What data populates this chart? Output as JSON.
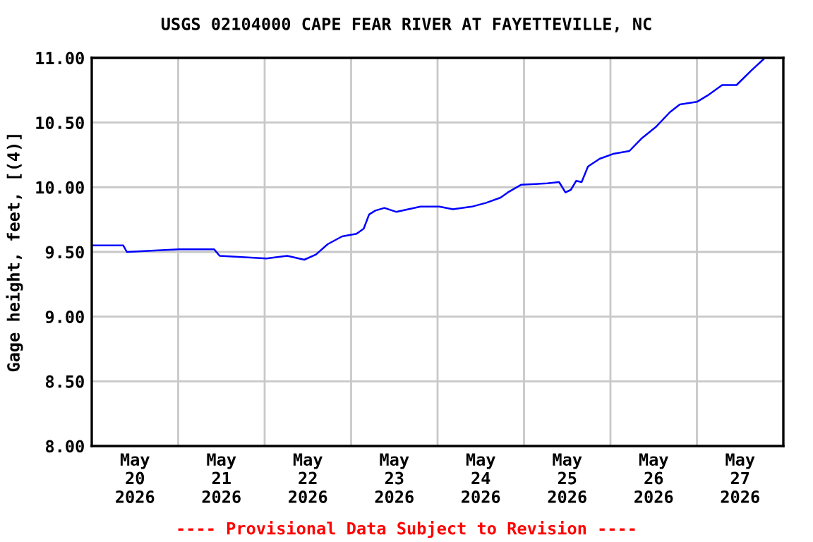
{
  "chart_data": {
    "type": "line",
    "title": "USGS 02104000 CAPE FEAR RIVER AT FAYETTEVILLE, NC",
    "ylabel": "Gage height, feet, [(4)]",
    "annotations": [
      "---- Provisional Data Subject to Revision ----"
    ],
    "x": [
      "2026-05-20T00:15",
      "2026-05-20T08:45",
      "2026-05-20T09:45",
      "2026-05-21T00:15",
      "2026-05-21T10:00",
      "2026-05-21T11:30",
      "2026-05-22T00:30",
      "2026-05-22T06:15",
      "2026-05-22T11:00",
      "2026-05-22T14:15",
      "2026-05-22T17:30",
      "2026-05-22T21:30",
      "2026-05-23T01:30",
      "2026-05-23T03:30",
      "2026-05-23T05:00",
      "2026-05-23T06:45",
      "2026-05-23T09:15",
      "2026-05-23T12:30",
      "2026-05-23T19:15",
      "2026-05-24T00:30",
      "2026-05-24T04:15",
      "2026-05-24T09:30",
      "2026-05-24T13:30",
      "2026-05-24T17:30",
      "2026-05-24T19:30",
      "2026-05-24T23:15",
      "2026-05-25T06:30",
      "2026-05-25T09:45",
      "2026-05-25T11:30",
      "2026-05-25T13:00",
      "2026-05-25T14:30",
      "2026-05-25T16:00",
      "2026-05-25T17:45",
      "2026-05-25T21:00",
      "2026-05-26T01:00",
      "2026-05-26T05:15",
      "2026-05-26T08:45",
      "2026-05-26T12:45",
      "2026-05-26T16:30",
      "2026-05-26T19:15",
      "2026-05-27T00:00",
      "2026-05-27T03:00",
      "2026-05-27T07:00",
      "2026-05-27T11:00",
      "2026-05-27T15:00",
      "2026-05-27T18:30"
    ],
    "series": [
      {
        "color": "#0000ff",
        "values": [
          9.55,
          9.55,
          9.5,
          9.52,
          9.52,
          9.47,
          9.45,
          9.47,
          9.44,
          9.48,
          9.56,
          9.62,
          9.64,
          9.68,
          9.79,
          9.82,
          9.84,
          9.81,
          9.85,
          9.85,
          9.83,
          9.85,
          9.88,
          9.92,
          9.96,
          10.02,
          10.03,
          10.04,
          9.96,
          9.98,
          10.05,
          10.04,
          10.16,
          10.22,
          10.26,
          10.28,
          10.38,
          10.47,
          10.58,
          10.64,
          10.66,
          10.71,
          10.79,
          10.79,
          10.9,
          10.99
        ]
      }
    ],
    "xlim": [
      "2026-05-20T00:00",
      "2026-05-28T00:00"
    ],
    "xticks": [
      {
        "value": "2026-05-20T00:00",
        "label": null
      },
      {
        "value": "2026-05-20T12:00",
        "label": "May\n20\n2026"
      },
      {
        "value": "2026-05-21T00:00",
        "label": null
      },
      {
        "value": "2026-05-21T12:00",
        "label": "May\n21\n2026"
      },
      {
        "value": "2026-05-22T00:00",
        "label": null
      },
      {
        "value": "2026-05-22T12:00",
        "label": "May\n22\n2026"
      },
      {
        "value": "2026-05-23T00:00",
        "label": null
      },
      {
        "value": "2026-05-23T12:00",
        "label": "May\n23\n2026"
      },
      {
        "value": "2026-05-24T00:00",
        "label": null
      },
      {
        "value": "2026-05-24T12:00",
        "label": "May\n24\n2026"
      },
      {
        "value": "2026-05-25T00:00",
        "label": null
      },
      {
        "value": "2026-05-25T12:00",
        "label": "May\n25\n2026"
      },
      {
        "value": "2026-05-26T00:00",
        "label": null
      },
      {
        "value": "2026-05-26T12:00",
        "label": "May\n26\n2026"
      },
      {
        "value": "2026-05-27T00:00",
        "label": null
      },
      {
        "value": "2026-05-27T12:00",
        "label": "May\n27\n2026"
      },
      {
        "value": "2026-05-28T00:00",
        "label": null
      }
    ],
    "ylim": [
      8.0,
      11.0
    ],
    "yticks": [
      {
        "value": 8.0,
        "label": "8.00"
      },
      {
        "value": 8.5,
        "label": "8.50"
      },
      {
        "value": 9.0,
        "label": "9.00"
      },
      {
        "value": 9.5,
        "label": "9.50"
      },
      {
        "value": 10.0,
        "label": "10.00"
      },
      {
        "value": 10.5,
        "label": "10.50"
      },
      {
        "value": 11.0,
        "label": "11.00"
      }
    ],
    "grid": true,
    "legend": false
  }
}
